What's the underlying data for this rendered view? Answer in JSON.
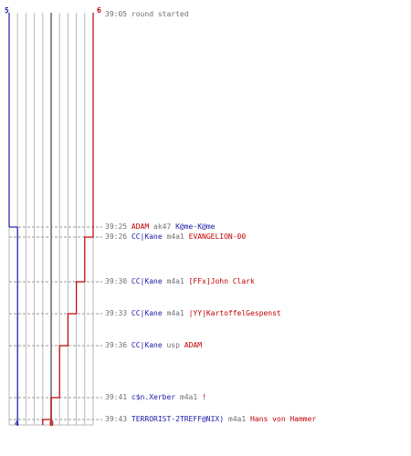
{
  "axis": {
    "top_left_count": "5",
    "top_right_count": "6",
    "bottom_left_count": "4",
    "bottom_right_count": "0",
    "ct_color": "#1a1aa8",
    "t_color": "#c00000",
    "grid_color": "#b8b8b8"
  },
  "start_entry": {
    "time": "39:05",
    "text": "round started"
  },
  "events": [
    {
      "time": "39:25",
      "killer": "ADAM",
      "killer_team": "t",
      "weapon": "ak47",
      "victim": "K@me-K@me",
      "victim_team": "ct"
    },
    {
      "time": "39:26",
      "killer": "CC|Kane",
      "killer_team": "ct",
      "weapon": "m4a1",
      "victim": "EVANGELION-00",
      "victim_team": "t"
    },
    {
      "time": "39:30",
      "killer": "CC|Kane",
      "killer_team": "ct",
      "weapon": "m4a1",
      "victim": "[FFx]John Clark",
      "victim_team": "t"
    },
    {
      "time": "39:33",
      "killer": "CC|Kane",
      "killer_team": "ct",
      "weapon": "m4a1",
      "victim": "|YY|KartoffelGespenst",
      "victim_team": "t"
    },
    {
      "time": "39:36",
      "killer": "CC|Kane",
      "killer_team": "ct",
      "weapon": "usp",
      "victim": "ADAM",
      "victim_team": "t"
    },
    {
      "time": "39:41",
      "killer": "c$n.Xerber",
      "killer_team": "ct",
      "weapon": "m4a1",
      "victim": "!",
      "victim_team": "t"
    },
    {
      "time": "39:43",
      "killer": "TERRORIST-2TREFF@NIX)",
      "killer_team": "ct",
      "weapon": "m4a1",
      "victim": "Hans von Hammer",
      "victim_team": "t"
    }
  ]
}
